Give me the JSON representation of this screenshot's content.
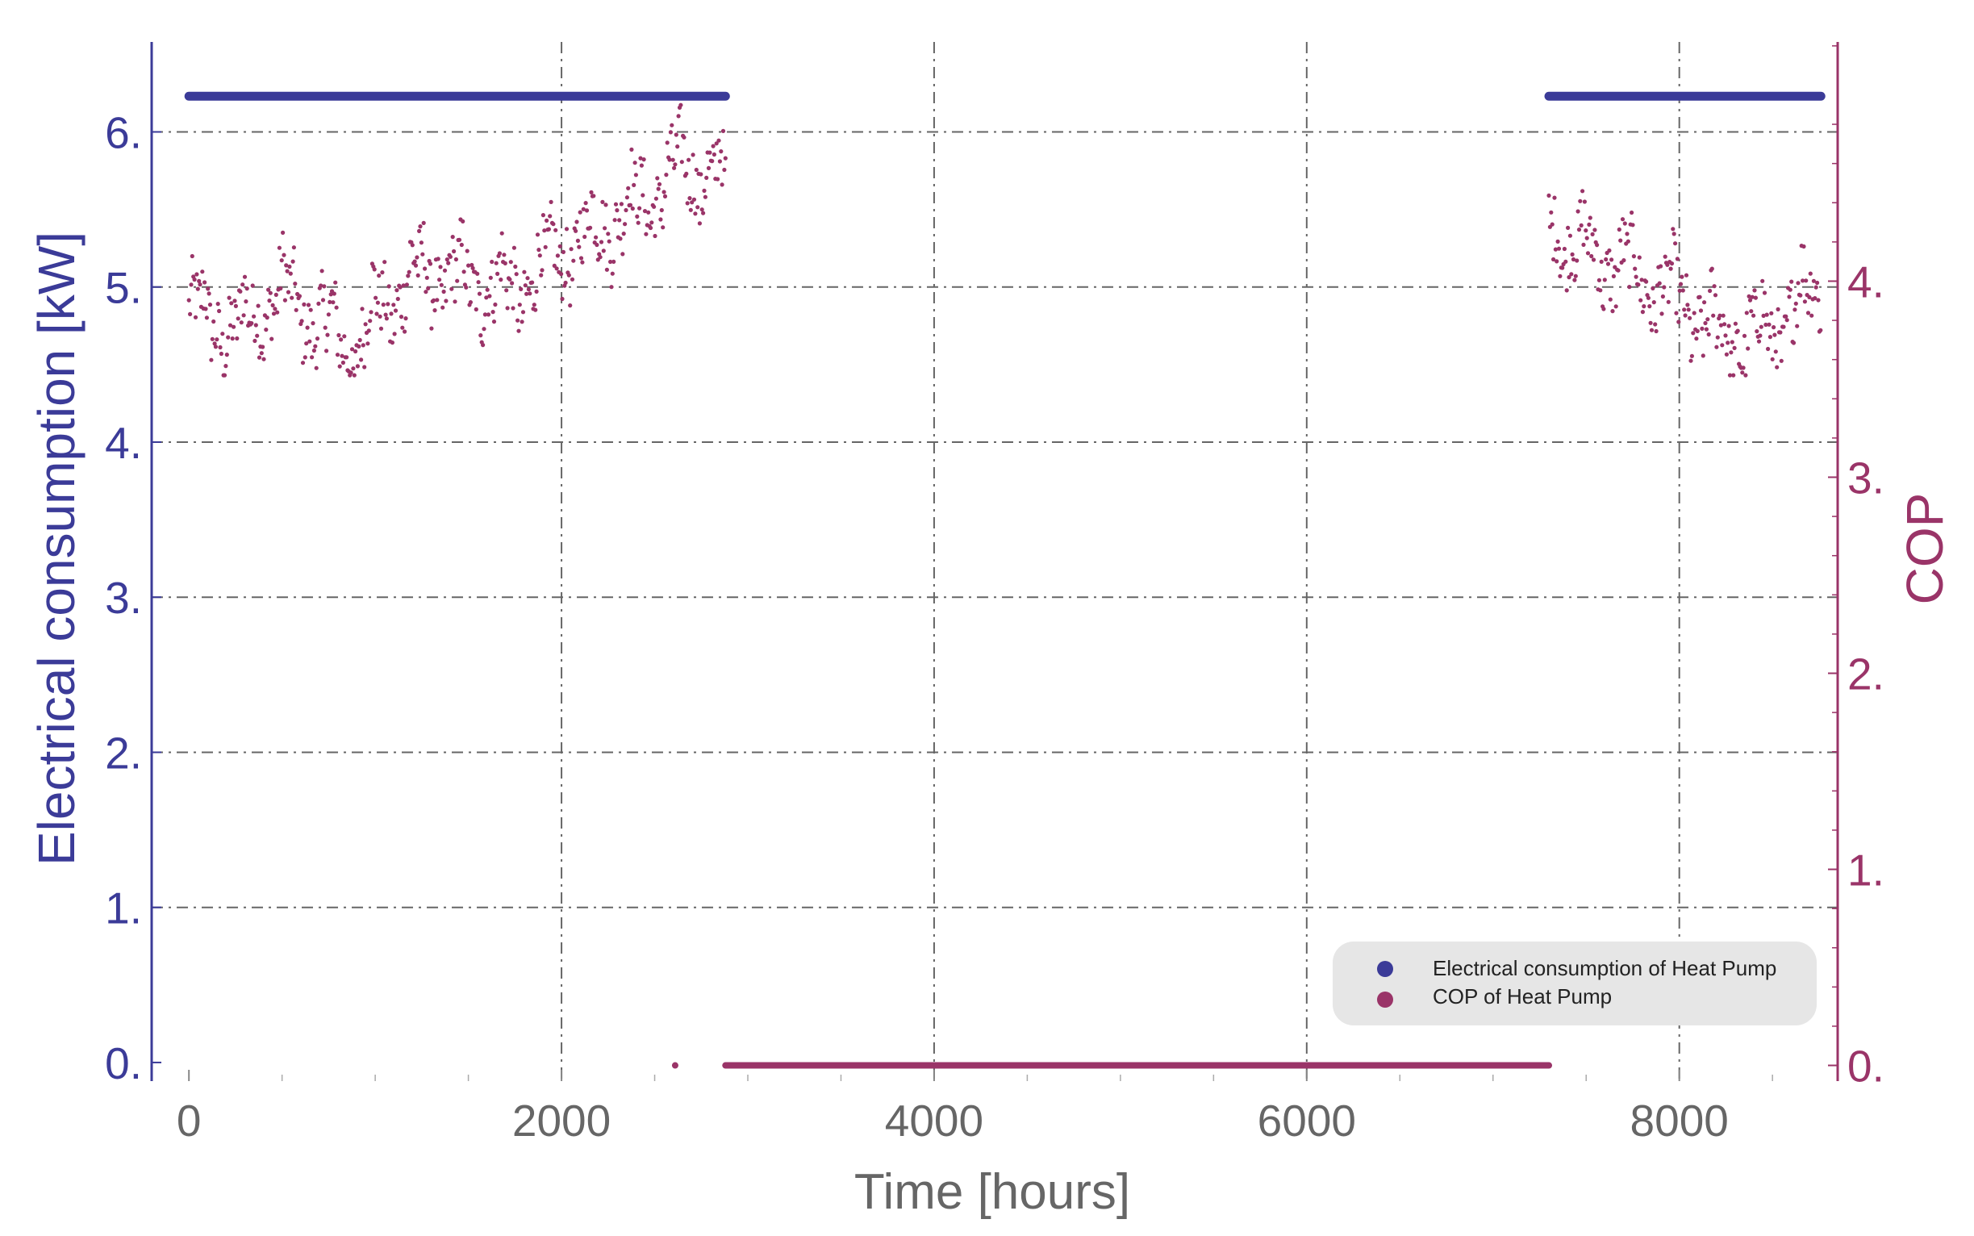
{
  "chart_data": {
    "type": "scatter",
    "title": "",
    "xlabel": "Time [hours]",
    "ylabel_left": "Electrical consumption [kW]",
    "ylabel_right": "COP",
    "xlim": [
      -200,
      8850
    ],
    "ylim_left": [
      -0.12,
      6.58
    ],
    "ylim_right": [
      -0.08,
      5.22
    ],
    "x_ticks": [
      0,
      2000,
      4000,
      6000,
      8000
    ],
    "x_tick_labels": [
      "0",
      "2000",
      "4000",
      "6000",
      "8000"
    ],
    "y_left_ticks": [
      0,
      1,
      2,
      3,
      4,
      5,
      6
    ],
    "y_left_tick_labels": [
      "0.",
      "1.",
      "2.",
      "3.",
      "4.",
      "5.",
      "6."
    ],
    "y_right_ticks": [
      0,
      1,
      2,
      3,
      4
    ],
    "y_right_tick_labels": [
      "0.",
      "1.",
      "2.",
      "3.",
      "4."
    ],
    "grid": "dash-dot",
    "legend_position": "bottom-right",
    "colors": {
      "electrical": "#3b3b98",
      "cop": "#9a3468",
      "grid": "#666666",
      "legend_bg": "#e6e6e6"
    },
    "series": [
      {
        "name": "Electrical consumption of Heat Pump",
        "axis": "left",
        "segments": [
          {
            "x_start": 0,
            "x_end": 2880,
            "y": 6.23
          },
          {
            "x_start": 7300,
            "x_end": 8760,
            "y": 6.23
          }
        ]
      },
      {
        "name": "COP of Heat Pump",
        "axis": "right",
        "trend_x": [
          0,
          250,
          500,
          750,
          900,
          1000,
          1250,
          1500,
          1750,
          2000,
          2250,
          2500,
          2650,
          2880,
          7300,
          7500,
          7750,
          8000,
          8250,
          8500,
          8760
        ],
        "trend_y": [
          3.85,
          3.75,
          3.95,
          3.75,
          3.65,
          3.85,
          4.05,
          4.0,
          3.95,
          4.15,
          4.3,
          4.45,
          4.6,
          4.5,
          4.3,
          4.15,
          4.05,
          3.9,
          3.7,
          3.75,
          4.0
        ],
        "min_y": 3.52,
        "max_y": 4.95,
        "zero_points": [
          {
            "x_start": 2610,
            "x_end": 2610,
            "y": 0
          },
          {
            "x_start": 2880,
            "x_end": 7300,
            "y": 0
          }
        ]
      }
    ]
  }
}
